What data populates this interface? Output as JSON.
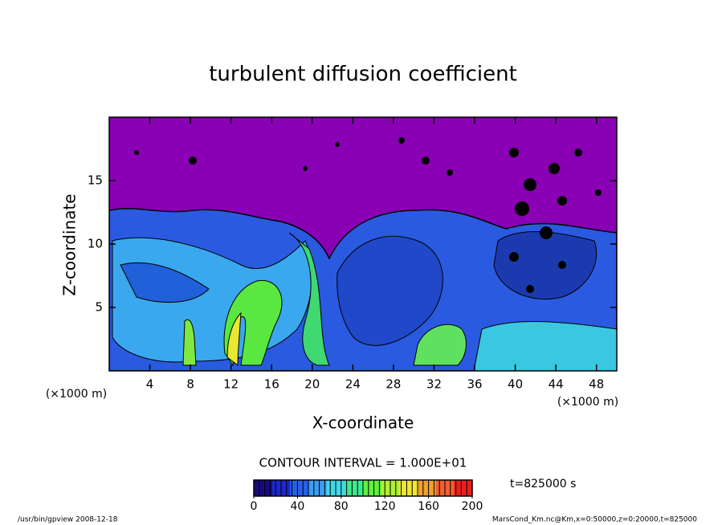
{
  "chart_data": {
    "type": "contour",
    "title": "turbulent diffusion coefficient",
    "x_label": "X-coordinate",
    "y_label": "Z-coordinate",
    "x_unit_label": "(×1000 m)",
    "xlim": [
      0,
      50
    ],
    "xticks": [
      4,
      8,
      12,
      16,
      20,
      24,
      28,
      32,
      36,
      40,
      44,
      48
    ],
    "ylim": [
      0,
      20
    ],
    "yticks": [
      5,
      10,
      15
    ],
    "contour_note": "CONTOUR INTERVAL = 1.000E+01",
    "time_label": "t=825000 s",
    "colorbar": {
      "lim": [
        0,
        200
      ],
      "ticks": [
        0,
        40,
        80,
        120,
        160,
        200
      ],
      "colors": [
        "#1a0a80",
        "#1e28c8",
        "#2860e8",
        "#3c9cf0",
        "#40d8e8",
        "#40e890",
        "#60f040",
        "#b0f030",
        "#f0e830",
        "#f0a030",
        "#f06030",
        "#e82020"
      ]
    },
    "footer_left": "/usr/bin/gpview  2008-12-18",
    "footer_right": "MarsCond_Km.nc@Km,x=0:50000,z=0:20000,t=825000"
  }
}
